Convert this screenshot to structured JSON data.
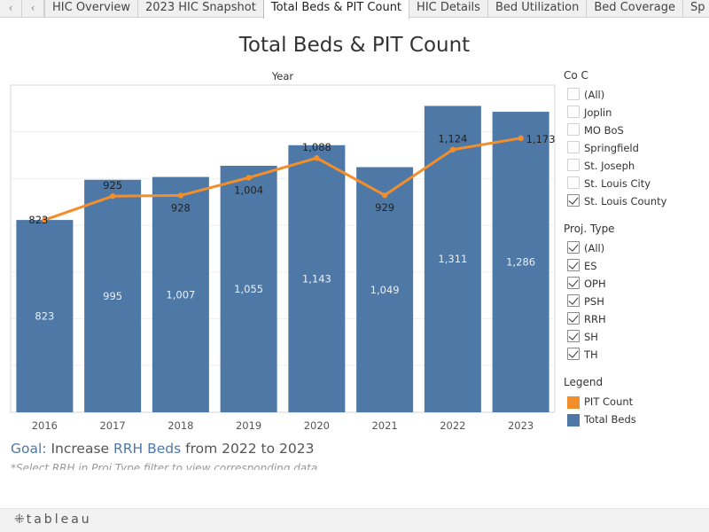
{
  "nav": {
    "prev_icon": "‹",
    "next_icon": "›"
  },
  "tabs": [
    {
      "label": "HIC Overview",
      "active": false
    },
    {
      "label": "2023 HIC Snapshot",
      "active": false
    },
    {
      "label": "Total Beds & PIT Count",
      "active": true
    },
    {
      "label": "HIC Details",
      "active": false
    },
    {
      "label": "Bed Utilization",
      "active": false
    },
    {
      "label": "Bed Coverage",
      "active": false
    },
    {
      "label": "Sp",
      "active": false
    }
  ],
  "page": {
    "title": "Total Beds & PIT Count"
  },
  "chart_data": {
    "type": "bar",
    "title": "Total Beds & PIT Count",
    "header_label": "Year",
    "categories": [
      "2016",
      "2017",
      "2018",
      "2019",
      "2020",
      "2021",
      "2022",
      "2023"
    ],
    "series": [
      {
        "name": "Total Beds",
        "kind": "bar",
        "color": "#4e79a7",
        "values": [
          823,
          995,
          1007,
          1055,
          1143,
          1049,
          1311,
          1286
        ],
        "labels": [
          "823",
          "995",
          "1,007",
          "1,055",
          "1,143",
          "1,049",
          "1,311",
          "1,286"
        ]
      },
      {
        "name": "PIT Count",
        "kind": "line",
        "color": "#f28e2b",
        "values": [
          823,
          925,
          928,
          1004,
          1088,
          929,
          1124,
          1173
        ],
        "labels": [
          "823",
          "925",
          "928",
          "1,004",
          "1,088",
          "929",
          "1,124",
          "1,173"
        ]
      }
    ],
    "ylim": [
      0,
      1400
    ],
    "xlabel": "",
    "ylabel": "",
    "grid": true
  },
  "filters": {
    "coc": {
      "title": "Co C",
      "items": [
        {
          "label": "(All)",
          "checked": false
        },
        {
          "label": "Joplin",
          "checked": false
        },
        {
          "label": "MO BoS",
          "checked": false
        },
        {
          "label": "Springfield",
          "checked": false
        },
        {
          "label": "St. Joseph",
          "checked": false
        },
        {
          "label": "St. Louis City",
          "checked": false
        },
        {
          "label": "St. Louis County",
          "checked": true
        }
      ]
    },
    "proj_type": {
      "title": "Proj. Type",
      "items": [
        {
          "label": "(All)",
          "checked": true
        },
        {
          "label": "ES",
          "checked": true
        },
        {
          "label": "OPH",
          "checked": true
        },
        {
          "label": "PSH",
          "checked": true
        },
        {
          "label": "RRH",
          "checked": true
        },
        {
          "label": "SH",
          "checked": true
        },
        {
          "label": "TH",
          "checked": true
        }
      ]
    }
  },
  "legend": {
    "title": "Legend",
    "items": [
      {
        "label": "PIT Count",
        "color": "#f28e2b"
      },
      {
        "label": "Total Beds",
        "color": "#4e79a7"
      }
    ]
  },
  "goal": {
    "prefix": "Goal:",
    "text1": " Increase ",
    "highlight": "RRH Beds",
    "text2": " from 2022 to 2023",
    "note": "*Select RRH in Proj Type filter to view corresponding data"
  },
  "footer": {
    "brand_mark": "⁜",
    "brand": "tableau"
  }
}
